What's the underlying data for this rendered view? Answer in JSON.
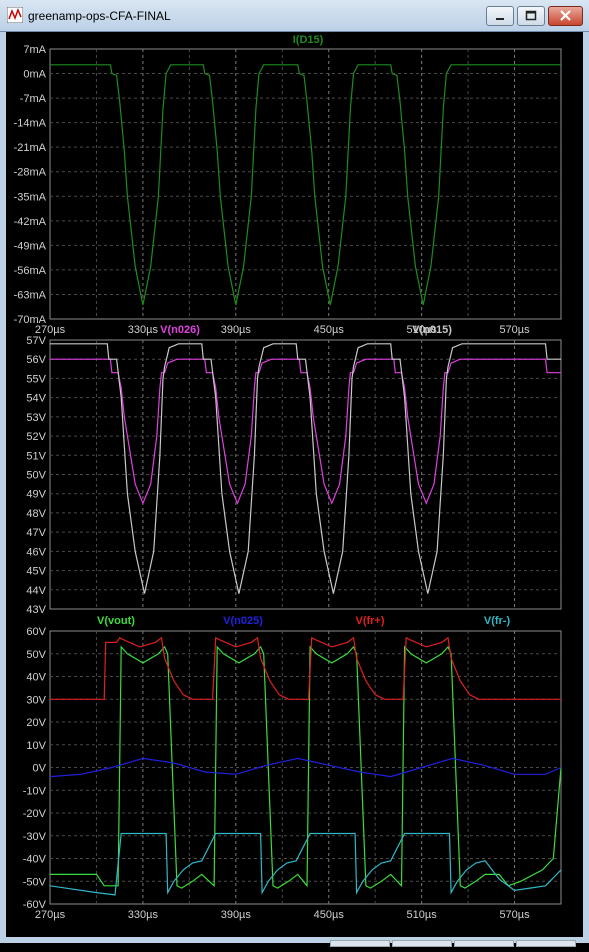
{
  "window": {
    "title": "greenamp-ops-CFA-FINAL",
    "icons": [
      "waveform-app-icon",
      "minimize-icon",
      "maximize-icon",
      "close-icon"
    ]
  },
  "chart_data": [
    {
      "type": "line",
      "x_ticks": [
        "270µs",
        "330µs",
        "390µs",
        "450µs",
        "510µs",
        "570µs"
      ],
      "xlim": [
        270,
        600
      ],
      "y_ticks": [
        "7mA",
        "0mA",
        "-7mA",
        "-14mA",
        "-21mA",
        "-28mA",
        "-35mA",
        "-42mA",
        "-49mA",
        "-56mA",
        "-63mA",
        "-70mA"
      ],
      "ylim": [
        -70,
        7
      ],
      "grid": true,
      "series": [
        {
          "name": "I(D15)",
          "color": "#1e8c1e",
          "x": [
            270,
            309,
            310,
            313,
            315,
            318,
            320,
            325,
            330,
            335,
            340,
            343,
            345,
            348,
            369,
            370,
            373,
            375,
            378,
            380,
            385,
            390,
            395,
            400,
            403,
            405,
            408,
            430,
            431,
            434,
            436,
            439,
            441,
            446,
            451,
            456,
            461,
            464,
            466,
            469,
            490,
            491,
            494,
            496,
            499,
            501,
            506,
            511,
            516,
            521,
            524,
            526,
            529,
            600
          ],
          "values": [
            2.5,
            2.5,
            0,
            -0.5,
            -8,
            -22,
            -35,
            -55,
            -66,
            -55,
            -35,
            -10,
            0,
            2.5,
            2.5,
            0,
            -0.5,
            -8,
            -22,
            -35,
            -55,
            -66,
            -55,
            -35,
            -10,
            0,
            2.5,
            2.5,
            0,
            -0.5,
            -8,
            -22,
            -35,
            -55,
            -66,
            -55,
            -35,
            -10,
            0,
            2.5,
            2.5,
            0,
            -0.5,
            -8,
            -22,
            -35,
            -55,
            -66,
            -55,
            -35,
            -10,
            0,
            2.5,
            2.5
          ]
        }
      ]
    },
    {
      "type": "line",
      "xlim": [
        270,
        600
      ],
      "y_ticks": [
        "57V",
        "56V",
        "55V",
        "54V",
        "53V",
        "52V",
        "51V",
        "50V",
        "49V",
        "48V",
        "47V",
        "46V",
        "45V",
        "44V",
        "43V"
      ],
      "ylim": [
        43,
        57
      ],
      "grid": true,
      "series": [
        {
          "name": "V(n026)",
          "color": "#e040e0",
          "x": [
            270,
            309,
            310,
            314,
            316,
            318,
            321,
            325,
            330,
            335,
            339,
            341,
            342,
            344,
            346,
            352,
            370,
            371,
            375,
            377,
            379,
            382,
            386,
            391,
            396,
            400,
            402,
            403,
            405,
            407,
            413,
            431,
            432,
            436,
            438,
            440,
            443,
            447,
            452,
            457,
            461,
            463,
            464,
            466,
            468,
            474,
            492,
            493,
            497,
            499,
            501,
            504,
            508,
            513,
            518,
            522,
            524,
            525,
            527,
            529,
            535,
            590,
            591,
            600
          ],
          "values": [
            56,
            56,
            55.3,
            55.3,
            54.5,
            53,
            51.5,
            49.5,
            48.5,
            49.5,
            52,
            54.5,
            55.3,
            55.3,
            55.8,
            56,
            56,
            55.3,
            55.3,
            54.5,
            53,
            51.5,
            49.5,
            48.5,
            49.5,
            52,
            54.5,
            55.3,
            55.3,
            55.8,
            56,
            56,
            55.3,
            55.3,
            54.5,
            53,
            51.5,
            49.5,
            48.5,
            49.5,
            52,
            54.5,
            55.3,
            55.3,
            55.8,
            56,
            56,
            55.3,
            55.3,
            54.5,
            53,
            51.5,
            49.5,
            48.5,
            49.5,
            52,
            54.5,
            55.3,
            55.3,
            55.8,
            56,
            56,
            55.3,
            55.3
          ]
        },
        {
          "name": "V(n015)",
          "color": "#c8c8c8",
          "x": [
            270,
            307,
            308,
            313,
            316,
            320,
            325,
            331,
            337,
            341,
            343,
            344,
            347,
            353,
            368,
            369,
            374,
            377,
            381,
            386,
            392,
            398,
            402,
            404,
            405,
            408,
            414,
            429,
            430,
            435,
            438,
            442,
            447,
            453,
            459,
            463,
            465,
            466,
            469,
            475,
            490,
            491,
            496,
            499,
            503,
            508,
            514,
            520,
            524,
            526,
            527,
            530,
            536,
            590,
            591,
            600
          ],
          "values": [
            56.8,
            56.8,
            56,
            56,
            54,
            49,
            46,
            43.8,
            46,
            51,
            55,
            55.6,
            56.6,
            56.8,
            56.8,
            56,
            56,
            54,
            49,
            46,
            43.8,
            46,
            51,
            55,
            55.6,
            56.6,
            56.8,
            56.8,
            56,
            56,
            54,
            49,
            46,
            43.8,
            46,
            51,
            55,
            55.6,
            56.6,
            56.8,
            56.8,
            56,
            56,
            54,
            49,
            46,
            43.8,
            46,
            51,
            55,
            55.6,
            56.6,
            56.8,
            56.8,
            56,
            56
          ]
        }
      ]
    },
    {
      "type": "line",
      "x_ticks": [
        "270µs",
        "330µs",
        "390µs",
        "450µs",
        "510µs",
        "570µs"
      ],
      "xlim": [
        270,
        600
      ],
      "y_ticks": [
        "60V",
        "50V",
        "40V",
        "30V",
        "20V",
        "10V",
        "0V",
        "-10V",
        "-20V",
        "-30V",
        "-40V",
        "-50V",
        "-60V"
      ],
      "ylim": [
        -60,
        60
      ],
      "grid": true,
      "series": [
        {
          "name": "V(vout)",
          "color": "#3cdc3c",
          "x": [
            270,
            300,
            305,
            314,
            316,
            320,
            330,
            340,
            344,
            346,
            352,
            355,
            362,
            368,
            376,
            378,
            382,
            392,
            402,
            406,
            408,
            414,
            417,
            424,
            430,
            436,
            438,
            442,
            452,
            462,
            466,
            468,
            474,
            477,
            484,
            490,
            497,
            499,
            503,
            513,
            523,
            527,
            529,
            535,
            538,
            545,
            551,
            560,
            566,
            574,
            588,
            595,
            600
          ],
          "values": [
            -47,
            -47,
            -52,
            -52,
            53,
            50,
            46,
            50,
            53,
            50,
            -52,
            -53,
            -50,
            -47,
            -52,
            53,
            50,
            46,
            50,
            53,
            50,
            -52,
            -53,
            -50,
            -47,
            -52,
            53,
            50,
            46,
            50,
            53,
            50,
            -52,
            -53,
            -50,
            -47,
            -52,
            53,
            50,
            46,
            50,
            53,
            50,
            -52,
            -53,
            -50,
            -47,
            -47,
            -52,
            -50,
            -45,
            -40,
            0
          ]
        },
        {
          "name": "V(n025)",
          "color": "#2020e0",
          "x": [
            270,
            290,
            310,
            330,
            350,
            370,
            390,
            410,
            430,
            450,
            470,
            490,
            510,
            530,
            550,
            570,
            590,
            600
          ],
          "values": [
            -4,
            -3,
            0,
            4,
            2,
            -2,
            -3,
            1,
            4,
            1,
            -2,
            -4,
            0,
            4,
            1,
            -3,
            -3,
            0
          ]
        },
        {
          "name": "V(fr+)",
          "color": "#e02020",
          "x": [
            270,
            305,
            306,
            313,
            315,
            318,
            328,
            338,
            342,
            344,
            350,
            356,
            362,
            368,
            375,
            377,
            380,
            390,
            400,
            404,
            406,
            412,
            418,
            424,
            430,
            437,
            439,
            442,
            452,
            462,
            466,
            468,
            474,
            480,
            486,
            492,
            498,
            500,
            503,
            513,
            523,
            527,
            529,
            535,
            541,
            547,
            553,
            600
          ],
          "values": [
            30,
            30,
            55,
            55,
            57,
            56,
            53,
            55,
            57,
            48,
            38,
            32,
            30,
            30,
            30,
            57,
            56,
            53,
            55,
            57,
            48,
            38,
            32,
            30,
            30,
            30,
            57,
            56,
            53,
            55,
            57,
            48,
            38,
            32,
            30,
            30,
            30,
            57,
            56,
            53,
            55,
            57,
            48,
            38,
            32,
            30,
            30,
            30
          ]
        },
        {
          "name": "V(fr-)",
          "color": "#30b8c8",
          "x": [
            270,
            300,
            312,
            316,
            330,
            345,
            346,
            350,
            356,
            362,
            368,
            377,
            378,
            392,
            406,
            407,
            411,
            417,
            423,
            429,
            438,
            439,
            452,
            467,
            468,
            472,
            478,
            484,
            490,
            499,
            500,
            514,
            528,
            529,
            533,
            539,
            545,
            551,
            560,
            570,
            580,
            590,
            600
          ],
          "values": [
            -52,
            -55,
            -56,
            -29,
            -29,
            -29,
            -55,
            -50,
            -45,
            -42,
            -41,
            -29,
            -29,
            -29,
            -29,
            -55,
            -50,
            -45,
            -42,
            -41,
            -29,
            -29,
            -29,
            -29,
            -55,
            -50,
            -45,
            -42,
            -41,
            -29,
            -29,
            -29,
            -29,
            -55,
            -50,
            -45,
            -42,
            -41,
            -49,
            -54,
            -53,
            -52,
            -45
          ]
        }
      ]
    }
  ]
}
